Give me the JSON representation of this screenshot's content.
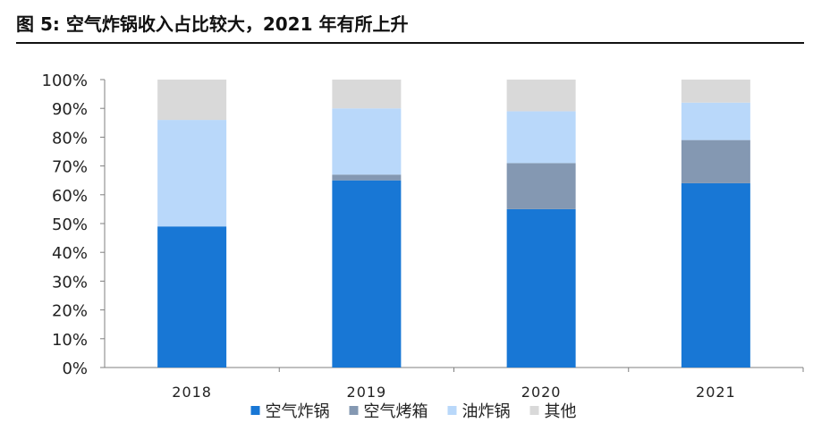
{
  "title": "图 5:  空气炸锅收入占比较大，2021 年有所上升",
  "chart_data": {
    "type": "bar",
    "stacked": true,
    "percent": true,
    "categories": [
      "2018",
      "2019",
      "2020",
      "2021"
    ],
    "series": [
      {
        "name": "空气炸锅",
        "color": "#1877D5",
        "values": [
          49,
          65,
          55,
          64
        ]
      },
      {
        "name": "空气烤箱",
        "color": "#8498B2",
        "values": [
          0,
          2,
          16,
          15
        ]
      },
      {
        "name": "油炸锅",
        "color": "#B9D8FA",
        "values": [
          37,
          23,
          18,
          13
        ]
      },
      {
        "name": "其他",
        "color": "#D9D9D9",
        "values": [
          14,
          10,
          11,
          8
        ]
      }
    ],
    "ylim": [
      0,
      100
    ],
    "yticks": [
      "0%",
      "10%",
      "20%",
      "30%",
      "40%",
      "50%",
      "60%",
      "70%",
      "80%",
      "90%",
      "100%"
    ],
    "grid": false,
    "legend": "bottom"
  }
}
